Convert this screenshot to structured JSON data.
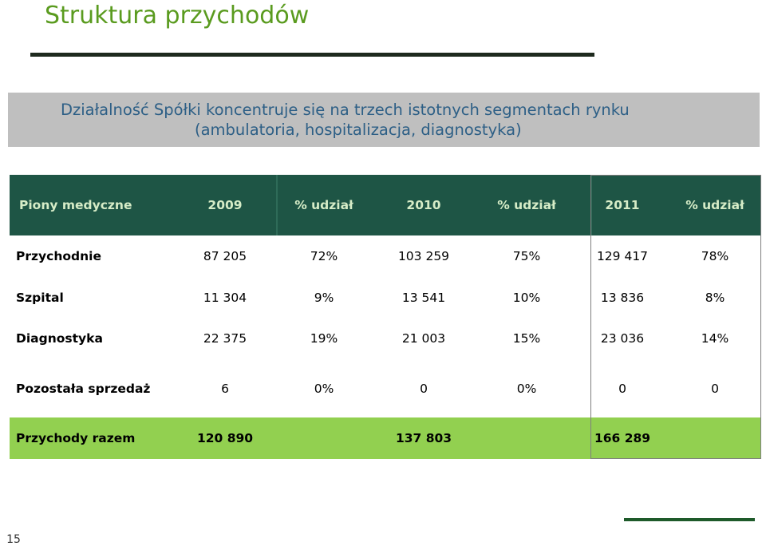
{
  "title": "Struktura przychodów",
  "banner": {
    "line1": "Działalność Spółki koncentruje się na trzech istotnych segmentach rynku",
    "line2": "(ambulatoria, hospitalizacja, diagnostyka)"
  },
  "table": {
    "headers": [
      "Piony medyczne",
      "2009",
      "% udział",
      "2010",
      "% udział",
      "2011",
      "% udział"
    ],
    "rows": [
      {
        "label": "Przychodnie",
        "values": [
          "87 205",
          "72%",
          "103 259",
          "75%",
          "129 417",
          "78%"
        ]
      },
      {
        "label": "Szpital",
        "values": [
          "11 304",
          "9%",
          "13 541",
          "10%",
          "13 836",
          "8%"
        ]
      },
      {
        "label": "Diagnostyka",
        "values": [
          "22 375",
          "19%",
          "21 003",
          "15%",
          "23 036",
          "14%"
        ]
      },
      {
        "label": "Pozostała sprzedaż",
        "values": [
          "6",
          "0%",
          "0",
          "0%",
          "0",
          "0"
        ]
      }
    ],
    "total": {
      "label": "Przychody razem",
      "v2009": "120 890",
      "v2010": "137 803",
      "v2011": "166 289"
    }
  },
  "page_number": "15",
  "colors": {
    "title": "#5a9b1f",
    "header_bg": "#1e5545",
    "header_text": "#d6ecc7",
    "total_bg": "#92d050",
    "banner_bg": "#bfbfbf",
    "banner_text": "#2d5f86"
  }
}
